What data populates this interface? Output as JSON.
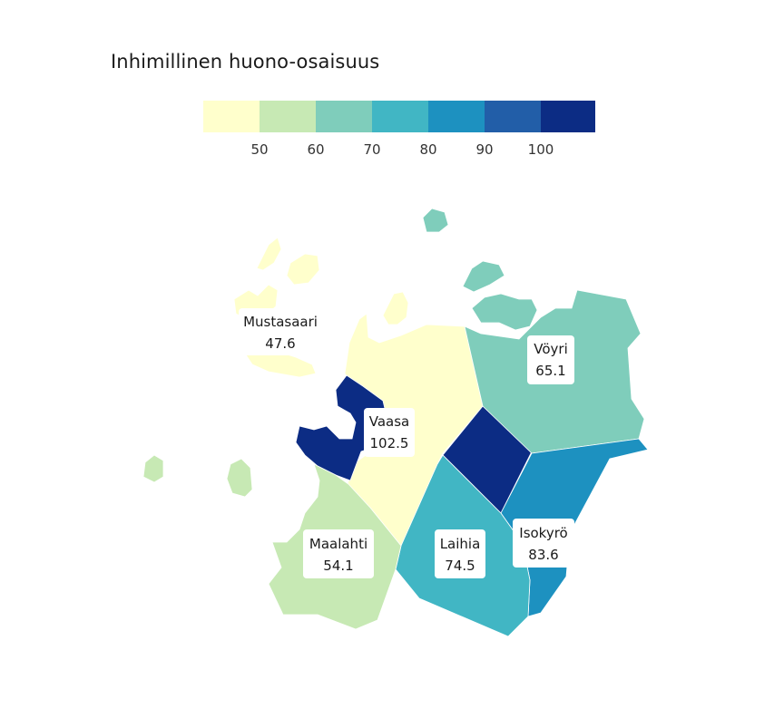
{
  "title": "Inhimillinen huono-osaisuus",
  "legend": {
    "colors": [
      "#ffffcc",
      "#c7e9b4",
      "#7fcdbb",
      "#41b6c4",
      "#1d91c0",
      "#225ea8",
      "#0c2c84"
    ],
    "ticks": [
      "50",
      "60",
      "70",
      "80",
      "90",
      "100"
    ]
  },
  "regions": [
    {
      "name": "Mustasaari",
      "value": "47.6",
      "color": "#ffffcc"
    },
    {
      "name": "Vöyri",
      "value": "65.1",
      "color": "#7fcdbb"
    },
    {
      "name": "Vaasa",
      "value": "102.5",
      "color": "#0c2c84"
    },
    {
      "name": "Maalahti",
      "value": "54.1",
      "color": "#c7e9b4"
    },
    {
      "name": "Laihia",
      "value": "74.5",
      "color": "#41b6c4"
    },
    {
      "name": "Isokyrö",
      "value": "83.6",
      "color": "#1d91c0"
    }
  ]
}
